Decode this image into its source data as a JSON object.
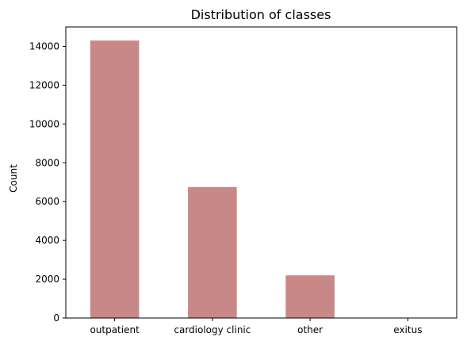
{
  "chart_data": {
    "type": "bar",
    "title": "Distribution of classes",
    "xlabel": "",
    "ylabel": "Count",
    "categories": [
      "outpatient",
      "cardiology clinic",
      "other",
      "exitus"
    ],
    "values": [
      14300,
      6750,
      2200,
      10
    ],
    "ylim": [
      0,
      15000
    ],
    "yticks": [
      0,
      2000,
      4000,
      6000,
      8000,
      10000,
      12000,
      14000
    ],
    "ytick_labels": [
      "0",
      "2000",
      "4000",
      "6000",
      "8000",
      "10000",
      "12000",
      "14000"
    ],
    "bar_color": "#c98888",
    "grid": false,
    "legend": "none"
  }
}
